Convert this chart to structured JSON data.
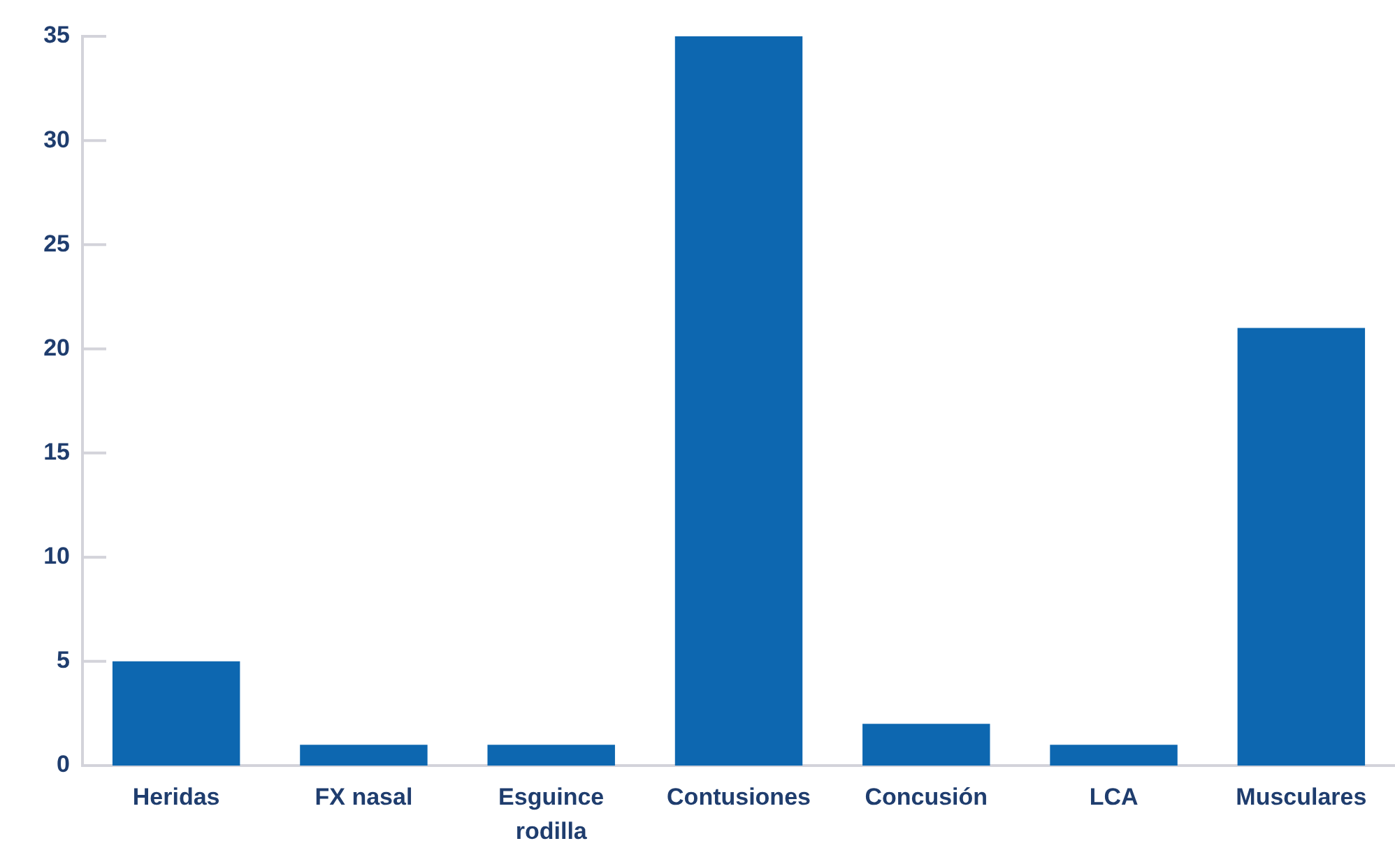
{
  "chart_data": {
    "type": "bar",
    "categories": [
      "Heridas",
      "FX nasal",
      "Esguince rodilla",
      "Contusiones",
      "Concusión",
      "LCA",
      "Musculares"
    ],
    "values": [
      5,
      1,
      1,
      35,
      2,
      1,
      21
    ],
    "color": "#0d67b0",
    "ylim": [
      0,
      35
    ],
    "yticks": [
      0,
      5,
      10,
      15,
      20,
      25,
      30,
      35
    ]
  }
}
